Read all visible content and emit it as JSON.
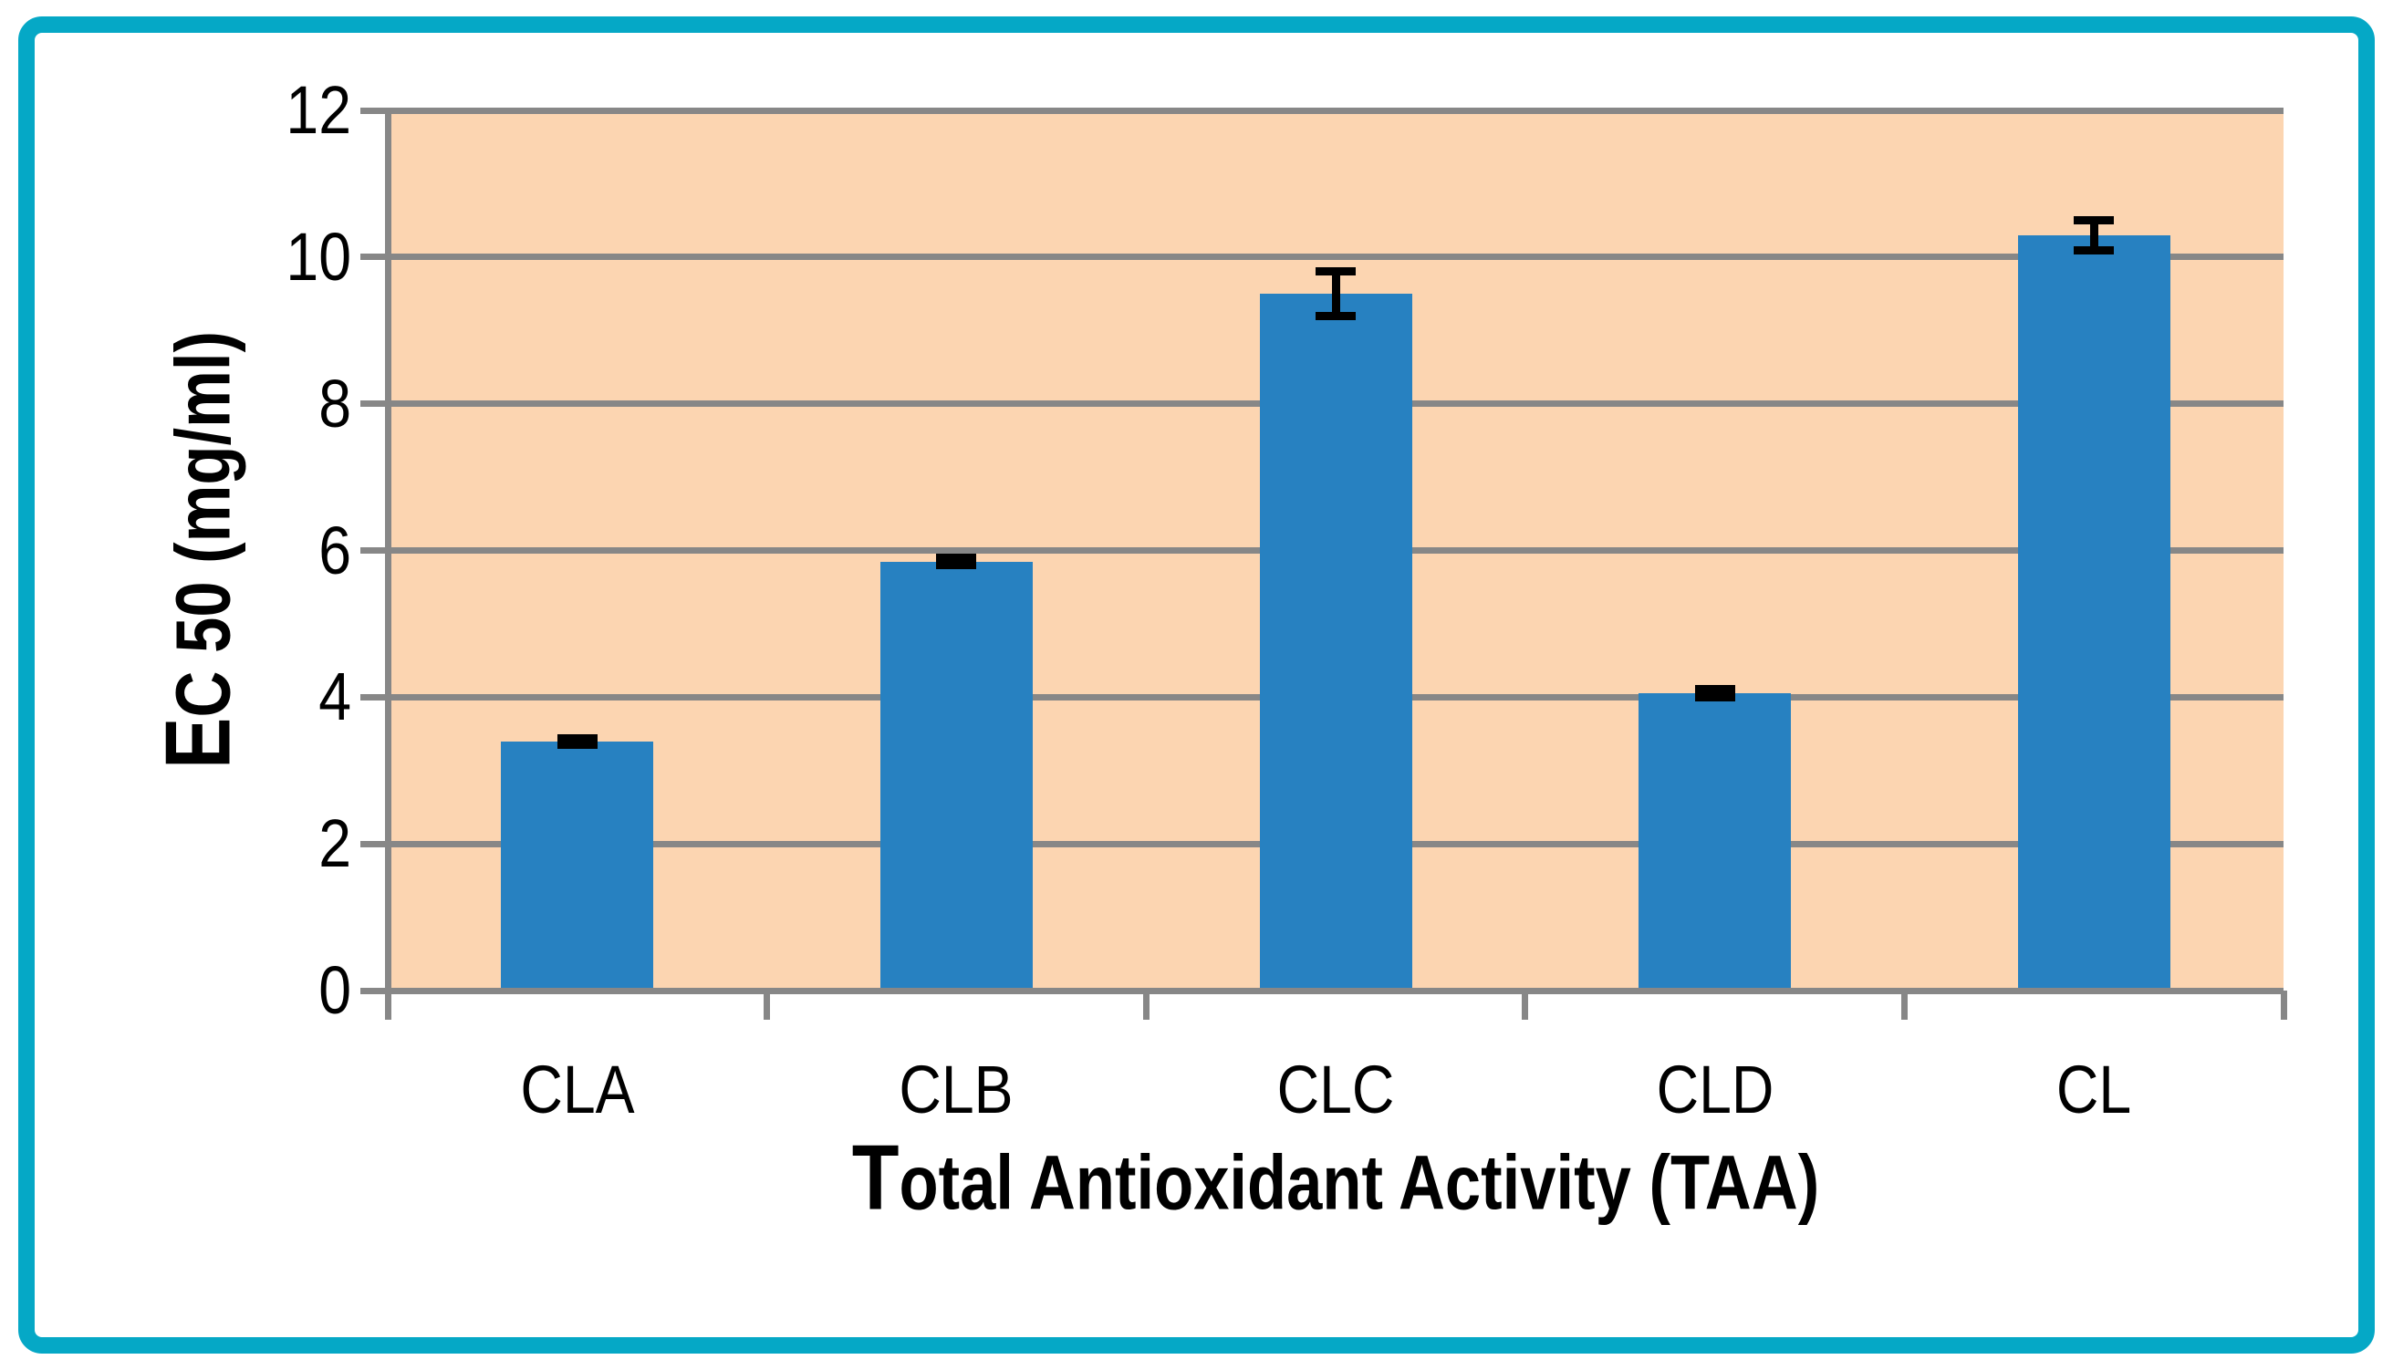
{
  "figure": {
    "frame_color": "#05A8C6",
    "background_color": "#FFFFFF"
  },
  "chart_data": {
    "type": "bar",
    "title": "",
    "xlabel": "Total Antioxidant Activity (TAA)",
    "ylabel": "EC 50 (mg/ml)",
    "categories": [
      "CLA",
      "CLB",
      "CLC",
      "CLD",
      "CL"
    ],
    "values": [
      3.4,
      5.85,
      9.5,
      4.05,
      10.3
    ],
    "error_bars": [
      0.05,
      0.06,
      0.31,
      0.06,
      0.21
    ],
    "ylim": [
      0,
      12
    ],
    "yticks": [
      0,
      2,
      4,
      6,
      8,
      10,
      12
    ],
    "grid": "horizontal major gridlines",
    "legend_position": "none",
    "bar_color": "#2781C1",
    "plot_background_color": "#FCD5B1",
    "gridline_color": "#878787",
    "axis_color": "#878787",
    "error_bar_color": "#000000"
  }
}
